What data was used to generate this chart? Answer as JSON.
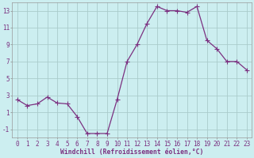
{
  "x": [
    0,
    1,
    2,
    3,
    4,
    5,
    6,
    7,
    8,
    9,
    10,
    11,
    12,
    13,
    14,
    15,
    16,
    17,
    18,
    19,
    20,
    21,
    22,
    23
  ],
  "y": [
    2.5,
    1.8,
    2.0,
    2.8,
    2.1,
    2.0,
    0.5,
    -1.5,
    -1.5,
    -1.5,
    2.5,
    7.0,
    9.0,
    11.5,
    13.5,
    13.0,
    13.0,
    12.8,
    13.5,
    9.5,
    8.5,
    7.0,
    7.0,
    6.0
  ],
  "line_color": "#7b3080",
  "marker_color": "#7b3080",
  "bg_color": "#cceef0",
  "grid_color": "#aacccc",
  "xlabel": "Windchill (Refroidissement éolien,°C)",
  "tick_color": "#7b3080",
  "ylim": [
    -2,
    14
  ],
  "xlim": [
    -0.5,
    23.5
  ],
  "yticks": [
    -1,
    1,
    3,
    5,
    7,
    9,
    11,
    13
  ],
  "xticks": [
    0,
    1,
    2,
    3,
    4,
    5,
    6,
    7,
    8,
    9,
    10,
    11,
    12,
    13,
    14,
    15,
    16,
    17,
    18,
    19,
    20,
    21,
    22,
    23
  ],
  "xtick_labels": [
    "0",
    "1",
    "2",
    "3",
    "4",
    "5",
    "6",
    "7",
    "8",
    "9",
    "10",
    "11",
    "12",
    "13",
    "14",
    "15",
    "16",
    "17",
    "18",
    "19",
    "20",
    "21",
    "22",
    "23"
  ],
  "xlabel_fontsize": 5.8,
  "tick_fontsize": 5.5,
  "marker_size": 2.0,
  "line_width": 0.9
}
